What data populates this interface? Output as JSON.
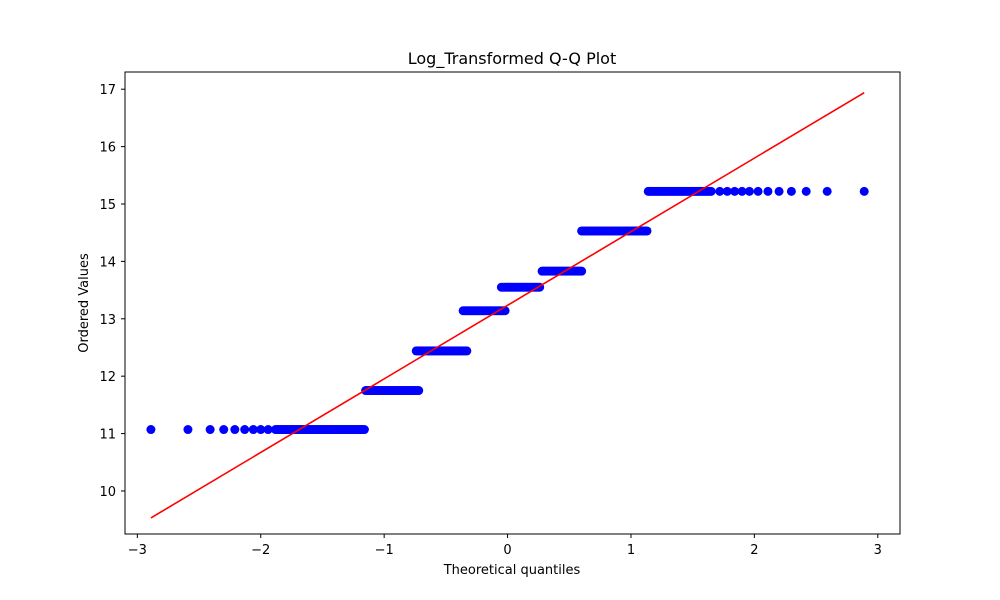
{
  "chart_data": {
    "type": "scatter",
    "title": "Log_Transformed Q-Q Plot",
    "xlabel": "Theoretical quantiles",
    "ylabel": "Ordered Values",
    "xlim": [
      -3.1,
      3.18
    ],
    "ylim": [
      9.25,
      17.3
    ],
    "xticks": [
      -3,
      -2,
      -1,
      0,
      1,
      2,
      3
    ],
    "yticks": [
      10,
      11,
      12,
      13,
      14,
      15,
      16,
      17
    ],
    "xtick_labels": [
      "−3",
      "−2",
      "−1",
      "0",
      "1",
      "2",
      "3"
    ],
    "ytick_labels": [
      "10",
      "11",
      "12",
      "13",
      "14",
      "15",
      "16",
      "17"
    ],
    "grid": false,
    "point_color": "#0000ff",
    "line_color": "#ff0000",
    "fit_line": {
      "x": [
        -2.89,
        2.89
      ],
      "y": [
        9.53,
        16.94
      ]
    },
    "steps": [
      {
        "y": 11.07,
        "x_start": -1.16,
        "x_end": -1.88,
        "outliers": [
          -2.89,
          -2.59,
          -2.41,
          -2.3,
          -2.21,
          -2.13,
          -2.06,
          -2.0,
          -1.94
        ]
      },
      {
        "y": 11.75,
        "x_start": -1.15,
        "x_end": -0.72,
        "outliers": []
      },
      {
        "y": 12.44,
        "x_start": -0.74,
        "x_end": -0.33,
        "outliers": []
      },
      {
        "y": 13.14,
        "x_start": -0.36,
        "x_end": -0.02,
        "outliers": []
      },
      {
        "y": 13.55,
        "x_start": -0.05,
        "x_end": 0.26,
        "outliers": []
      },
      {
        "y": 13.83,
        "x_start": 0.28,
        "x_end": 0.6,
        "outliers": []
      },
      {
        "y": 14.53,
        "x_start": 0.6,
        "x_end": 1.13,
        "outliers": []
      },
      {
        "y": 15.22,
        "x_start": 1.14,
        "x_end": 1.65,
        "outliers": [
          1.72,
          1.78,
          1.84,
          1.9,
          1.96,
          2.03,
          2.11,
          2.2,
          2.3,
          2.42,
          2.59,
          2.89
        ]
      }
    ]
  }
}
